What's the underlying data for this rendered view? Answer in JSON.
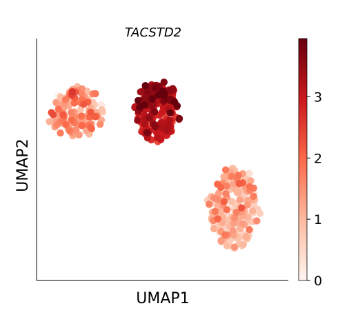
{
  "chart_data": {
    "type": "scatter",
    "title": "TACSTD2",
    "xlabel": "UMAP1",
    "ylabel": "UMAP2",
    "grid": false,
    "legend": "none",
    "colorbar": {
      "label": "",
      "vmin": 0,
      "vmax": 3.95,
      "ticks": [
        0,
        1,
        2,
        3
      ],
      "tick_labels": [
        "0",
        "1",
        "2",
        "3"
      ],
      "cmap": "Reds",
      "position": "right"
    },
    "xlim": [
      0,
      10
    ],
    "ylim": [
      0,
      10
    ],
    "clusters": [
      {
        "center": [
          1.6,
          6.9
        ],
        "spread": [
          1.15,
          1.15
        ],
        "n": 150,
        "expression_mean": 1.2,
        "expression_sd": 0.6
      },
      {
        "center": [
          4.8,
          7.0
        ],
        "spread": [
          0.95,
          1.35
        ],
        "n": 200,
        "expression_mean": 3.05,
        "expression_sd": 0.45
      },
      {
        "center": [
          7.8,
          3.0
        ],
        "spread": [
          1.05,
          1.9
        ],
        "n": 210,
        "expression_mean": 0.9,
        "expression_sd": 0.55
      }
    ]
  }
}
